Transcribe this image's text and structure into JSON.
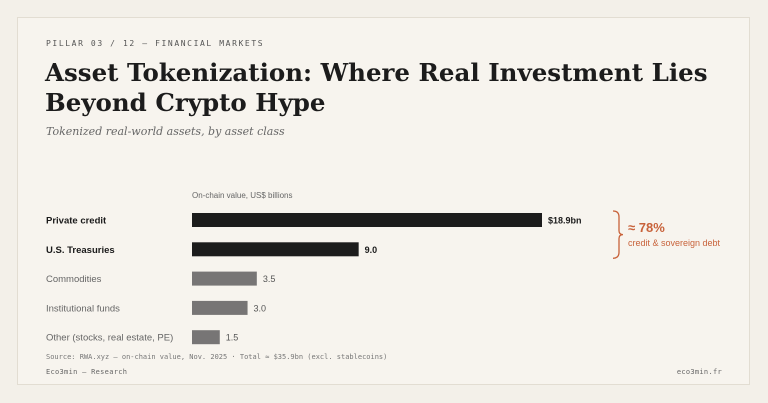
{
  "header": {
    "kicker": "PILLAR 03 / 12 — FINANCIAL MARKETS",
    "title": "Asset Tokenization: Where Real Investment Lies Beyond Crypto Hype",
    "subtitle": "Tokenized real-world assets, by asset class"
  },
  "colors": {
    "accent": "#c8623a",
    "bar_dark": "#1c1c1c",
    "bar_muted": "#777575"
  },
  "chart_data": {
    "type": "bar",
    "orientation": "horizontal",
    "unit_label": "On-chain value, US$ billions",
    "categories": [
      "Private credit",
      "U.S. Treasuries",
      "Commodities",
      "Institutional funds",
      "Other (stocks, real estate, PE)"
    ],
    "values": [
      18.9,
      9.0,
      3.5,
      3.0,
      1.5
    ],
    "value_labels": [
      "$18.9bn",
      "9.0",
      "3.5",
      "3.0",
      "1.5"
    ],
    "highlighted": [
      true,
      true,
      false,
      false,
      false
    ],
    "xlim": [
      0,
      18.9
    ],
    "grid": false,
    "annotation": {
      "value": "≈ 78%",
      "label": "credit & sovereign debt",
      "applies_to": [
        "Private credit",
        "U.S. Treasuries"
      ]
    }
  },
  "footer": {
    "source": "Source: RWA.xyz — on-chain value, Nov. 2025 · Total ≈ $35.9bn (excl. stablecoins)",
    "brand": "Eco3min — Research",
    "site": "eco3min.fr"
  }
}
